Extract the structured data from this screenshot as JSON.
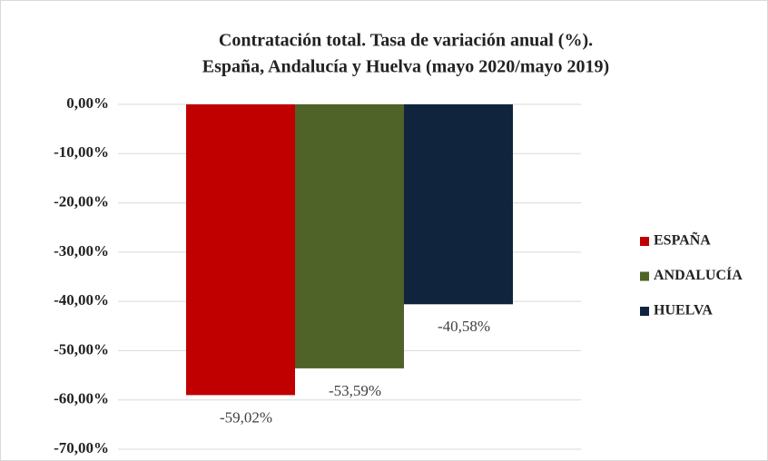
{
  "chart_data": {
    "type": "bar",
    "title": [
      "Contratación total. Tasa de variación anual (%).",
      "España, Andalucía y Huelva (mayo 2020/mayo 2019)"
    ],
    "categories": [
      null
    ],
    "series": [
      {
        "name": "ESPAÑA",
        "color": "#c00000",
        "values": [
          -59.02
        ],
        "value_labels": [
          "-59,02%"
        ]
      },
      {
        "name": "ANDALUCÍA",
        "color": "#4f6228",
        "values": [
          -53.59
        ],
        "value_labels": [
          "-53,59%"
        ]
      },
      {
        "name": "HUELVA",
        "color": "#10243e",
        "values": [
          -40.58
        ],
        "value_labels": [
          "-40,58%"
        ]
      }
    ],
    "ylim": [
      -70,
      0
    ],
    "yticks": [
      {
        "value": 0,
        "label": "0,00%"
      },
      {
        "value": -10,
        "label": "-10,00%"
      },
      {
        "value": -20,
        "label": "-20,00%"
      },
      {
        "value": -30,
        "label": "-30,00%"
      },
      {
        "value": -40,
        "label": "-40,00%"
      },
      {
        "value": -50,
        "label": "-50,00%"
      },
      {
        "value": -60,
        "label": "-60,00%"
      },
      {
        "value": -70,
        "label": "-70,00%"
      }
    ],
    "grid": true,
    "legend": "right"
  }
}
